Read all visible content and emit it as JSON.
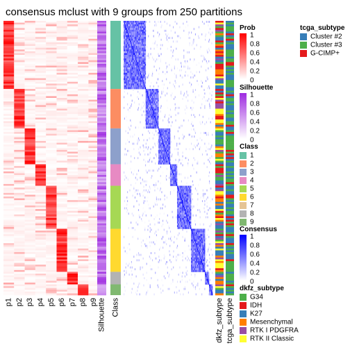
{
  "title": "consensus mclust with 9 groups from 250 partitions",
  "chart_data": {
    "type": "heatmap",
    "title": "consensus mclust with 9 groups from 250 partitions",
    "columns": [
      "p1",
      "p2",
      "p3",
      "p4",
      "p5",
      "p6",
      "p7",
      "p8",
      "p9",
      "Silhouette",
      "Class",
      "dkfz_subtype",
      "tcga_subtype"
    ],
    "class_groups": [
      {
        "class": "1",
        "color": "#66C2A5",
        "rows": 38
      },
      {
        "class": "2",
        "color": "#FC8D62",
        "rows": 22
      },
      {
        "class": "3",
        "color": "#8DA0CB",
        "rows": 20
      },
      {
        "class": "4",
        "color": "#E78AC3",
        "rows": 12
      },
      {
        "class": "5",
        "color": "#A6D854",
        "rows": 24
      },
      {
        "class": "6",
        "color": "#FFD92F",
        "rows": 24
      },
      {
        "class": "7",
        "color": "#E5C494",
        "rows": 0
      },
      {
        "class": "8",
        "color": "#B3B3B3",
        "rows": 7
      },
      {
        "class": "9",
        "color": "#80B970",
        "rows": 6
      }
    ],
    "legends": [
      {
        "title": "Prob",
        "type": "continuous",
        "labels": [
          "1",
          "0.8",
          "0.6",
          "0.4",
          "0.2",
          "0"
        ],
        "colors": [
          "#FF0000",
          "#FFFFFF"
        ]
      },
      {
        "title": "Silhouette",
        "type": "continuous",
        "labels": [
          "1",
          "0.8",
          "0.6",
          "0.4",
          "0.2",
          "0"
        ],
        "colors": [
          "#9E2BE0",
          "#FFFFFF"
        ]
      },
      {
        "title": "Class",
        "type": "discrete",
        "labels": [
          "1",
          "2",
          "3",
          "4",
          "5",
          "6",
          "7",
          "8",
          "9"
        ],
        "colors": [
          "#66C2A5",
          "#FC8D62",
          "#8DA0CB",
          "#E78AC3",
          "#A6D854",
          "#FFD92F",
          "#E5C494",
          "#B3B3B3",
          "#80B970"
        ]
      },
      {
        "title": "Consensus",
        "type": "continuous",
        "labels": [
          "1",
          "0.8",
          "0.6",
          "0.4",
          "0.2",
          "0"
        ],
        "colors": [
          "#0000FF",
          "#FFFFFF"
        ]
      },
      {
        "title": "dkfz_subtype",
        "type": "discrete",
        "labels": [
          "G34",
          "IDH",
          "K27",
          "Mesenchymal",
          "RTK I PDGFRA",
          "RTK II Classic"
        ],
        "colors": [
          "#4DAF4A",
          "#E41A1C",
          "#377EB8",
          "#FF7F00",
          "#984EA3",
          "#FFFF33"
        ]
      },
      {
        "title": "tcga_subtype",
        "type": "discrete",
        "labels": [
          "Cluster #2",
          "Cluster #3",
          "G-CIMP+"
        ],
        "colors": [
          "#377EB8",
          "#4DAF4A",
          "#E41A1C"
        ]
      }
    ]
  }
}
